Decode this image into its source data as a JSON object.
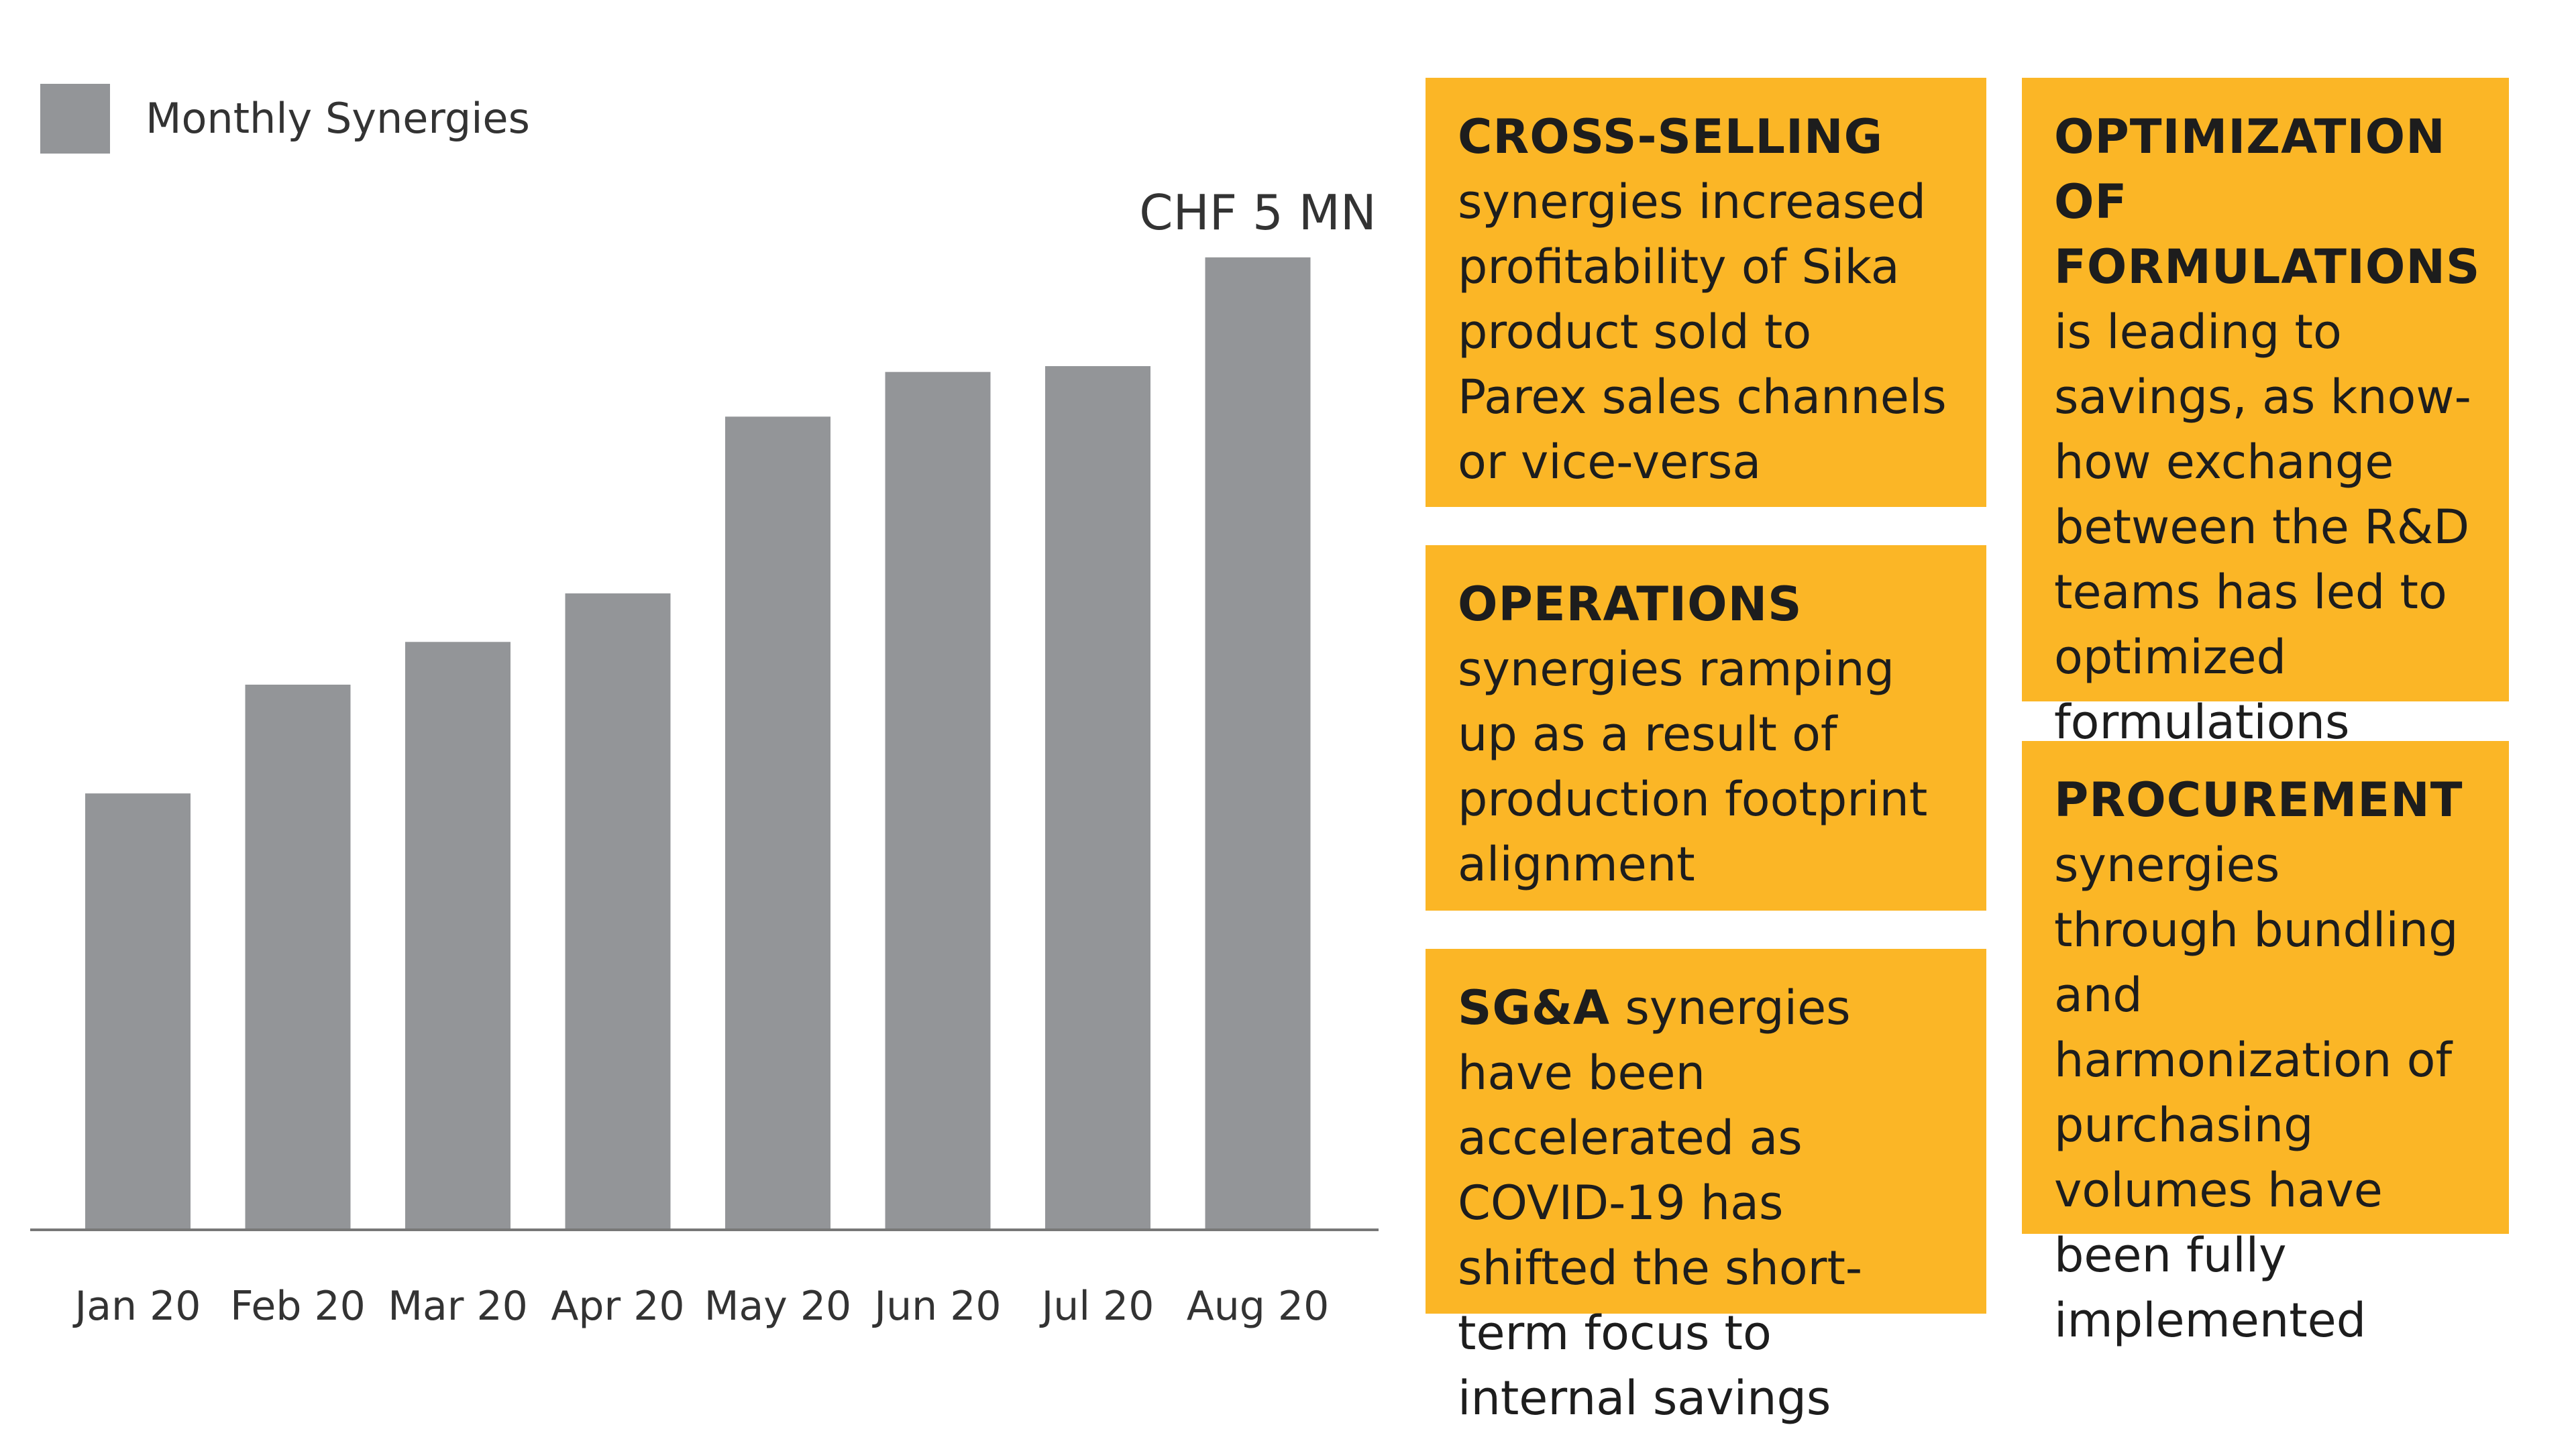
{
  "legend": {
    "label": "Monthly Synergies",
    "color": "#939598"
  },
  "chart_data": {
    "type": "bar",
    "categories": [
      "Jan 20",
      "Feb 20",
      "Mar 20",
      "Apr 20",
      "May 20",
      "Jun 20",
      "Jul 20",
      "Aug 20"
    ],
    "values": [
      2.24,
      2.8,
      3.02,
      3.27,
      4.18,
      4.41,
      4.44,
      5.0
    ],
    "ylim": [
      0,
      5.6
    ],
    "title": "",
    "xlabel": "",
    "ylabel": "",
    "series_name": "Monthly Synergies",
    "annotation": "CHF 5 MN",
    "annotation_category": "Aug 20",
    "bar_color": "#939598"
  },
  "panels": {
    "background": "#fbb626",
    "cross_selling": {
      "heading": "CROSS-SELLING",
      "text": "synergies increased profitability of Sika product sold to Parex sales channels or vice-versa"
    },
    "operations": {
      "heading": "OPERATIONS",
      "text": "synergies ramping up as a result of production footprint alignment"
    },
    "sga": {
      "heading": "SG&A",
      "text": "synergies have been accelerated as COVID-19 has shifted the short-term focus to internal savings"
    },
    "optimization": {
      "heading": "OPTIMIZATION OF FORMULATIONS",
      "text": "is leading to savings, as know-how exchange between the R&D teams has led to optimized formulations"
    },
    "procurement": {
      "heading": "PROCUREMENT",
      "text": "synergies through bundling and harmonization of purchasing volumes have been fully implemented"
    }
  }
}
